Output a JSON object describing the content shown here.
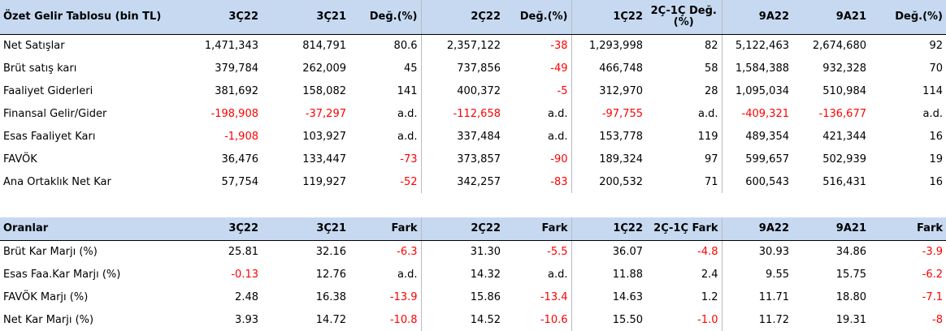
{
  "negative_color": "#ff0000",
  "tables": [
    {
      "header": [
        "Özet Gelir Tablosu (bin TL)",
        "3Ç22",
        "3Ç21",
        "Değ.(%)",
        "2Ç22",
        "Değ.(%)",
        "1Ç22",
        "2Ç-1Ç Değ.(%)",
        "9A22",
        "9A21",
        "Değ.(%)"
      ],
      "rows": [
        [
          "Net Satışlar",
          "1,471,343",
          "814,791",
          "80.6",
          "2,357,122",
          "-38",
          "1,293,998",
          "82",
          "5,122,463",
          "2,674,680",
          "92"
        ],
        [
          "Brüt satış karı",
          "379,784",
          "262,009",
          "45",
          "737,856",
          "-49",
          "466,748",
          "58",
          "1,584,388",
          "932,328",
          "70"
        ],
        [
          "Faaliyet Giderleri",
          "381,692",
          "158,082",
          "141",
          "400,372",
          "-5",
          "312,970",
          "28",
          "1,095,034",
          "510,984",
          "114"
        ],
        [
          "Finansal Gelir/Gider",
          "-198,908",
          "-37,297",
          "a.d.",
          "-112,658",
          "a.d.",
          "-97,755",
          "a.d.",
          "-409,321",
          "-136,677",
          "a.d."
        ],
        [
          "Esas Faaliyet Karı",
          "-1,908",
          "103,927",
          "a.d.",
          "337,484",
          "a.d.",
          "153,778",
          "119",
          "489,354",
          "421,344",
          "16"
        ],
        [
          "FAVÖK",
          "36,476",
          "133,447",
          "-73",
          "373,857",
          "-90",
          "189,324",
          "97",
          "599,657",
          "502,939",
          "19"
        ],
        [
          "Ana Ortaklık Net Kar",
          "57,754",
          "119,927",
          "-52",
          "342,257",
          "-83",
          "200,532",
          "71",
          "600,543",
          "516,431",
          "16"
        ]
      ]
    },
    {
      "header": [
        "Oranlar",
        "3Ç22",
        "3Ç21",
        "Fark",
        "2Ç22",
        "Fark",
        "1Ç22",
        "2Ç-1Ç Fark",
        "9A22",
        "9A21",
        "Fark"
      ],
      "rows": [
        [
          "Brüt Kar Marjı (%)",
          "25.81",
          "32.16",
          "-6.3",
          "31.30",
          "-5.5",
          "36.07",
          "-4.8",
          "30.93",
          "34.86",
          "-3.9"
        ],
        [
          "Esas Faa.Kar Marjı (%)",
          "-0.13",
          "12.76",
          "a.d.",
          "14.32",
          "a.d.",
          "11.88",
          "2.4",
          "9.55",
          "15.75",
          "-6.2"
        ],
        [
          "FAVÖK Marjı (%)",
          "2.48",
          "16.38",
          "-13.9",
          "15.86",
          "-13.4",
          "14.63",
          "1.2",
          "11.71",
          "18.80",
          "-7.1"
        ],
        [
          "Net Kar Marjı (%)",
          "3.93",
          "14.72",
          "-10.8",
          "14.52",
          "-10.6",
          "15.50",
          "-1.0",
          "11.72",
          "19.31",
          "-8"
        ]
      ]
    }
  ]
}
